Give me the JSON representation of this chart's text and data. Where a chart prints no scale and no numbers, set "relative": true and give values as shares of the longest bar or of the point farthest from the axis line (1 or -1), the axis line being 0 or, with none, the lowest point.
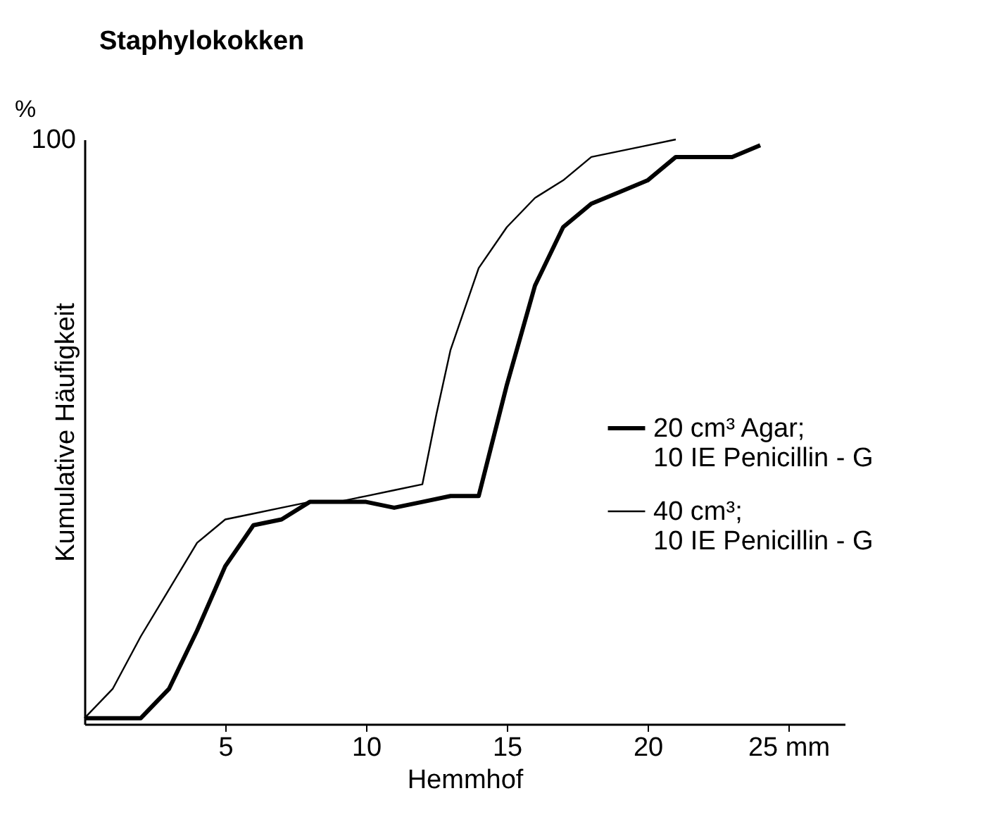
{
  "chart_data": {
    "type": "line",
    "title": "Staphylokokken",
    "xlabel": "Hemmhof",
    "ylabel": "Kumulative Häufigkeit",
    "annotations": [
      "%",
      "100"
    ],
    "relative": true,
    "xlim": [
      0,
      27
    ],
    "xticks": [
      5,
      10,
      15,
      20,
      {
        "value": 25,
        "label": "25 mm"
      }
    ],
    "grid": false,
    "legend": "right",
    "marker": "none",
    "line_style": "solid",
    "series": [
      {
        "name": "20 cm³ Agar;\n10 IE Penicillin - G",
        "color": "#000000",
        "x": [
          0,
          2,
          3,
          4,
          5,
          6,
          7,
          8,
          9,
          10,
          11,
          12,
          13,
          14,
          15,
          16,
          17,
          18,
          19,
          20,
          21,
          22,
          23,
          24
        ],
        "values": [
          0.01,
          0.01,
          0.06,
          0.16,
          0.27,
          0.34,
          0.35,
          0.38,
          0.38,
          0.38,
          0.37,
          0.38,
          0.39,
          0.39,
          0.58,
          0.75,
          0.85,
          0.89,
          0.91,
          0.93,
          0.97,
          0.97,
          0.97,
          0.99
        ]
      },
      {
        "name": "40 cm³;\n10 IE Penicillin - G",
        "color": "#000000",
        "x": [
          0,
          1,
          2,
          3,
          4,
          5,
          6,
          7,
          8,
          9,
          10,
          11,
          12,
          12.5,
          13,
          14,
          15,
          16,
          17,
          18,
          19,
          20,
          21
        ],
        "values": [
          0.01,
          0.06,
          0.15,
          0.23,
          0.31,
          0.35,
          0.36,
          0.37,
          0.38,
          0.38,
          0.39,
          0.4,
          0.41,
          0.53,
          0.64,
          0.78,
          0.85,
          0.9,
          0.93,
          0.97,
          0.98,
          0.99,
          1
        ]
      }
    ]
  }
}
